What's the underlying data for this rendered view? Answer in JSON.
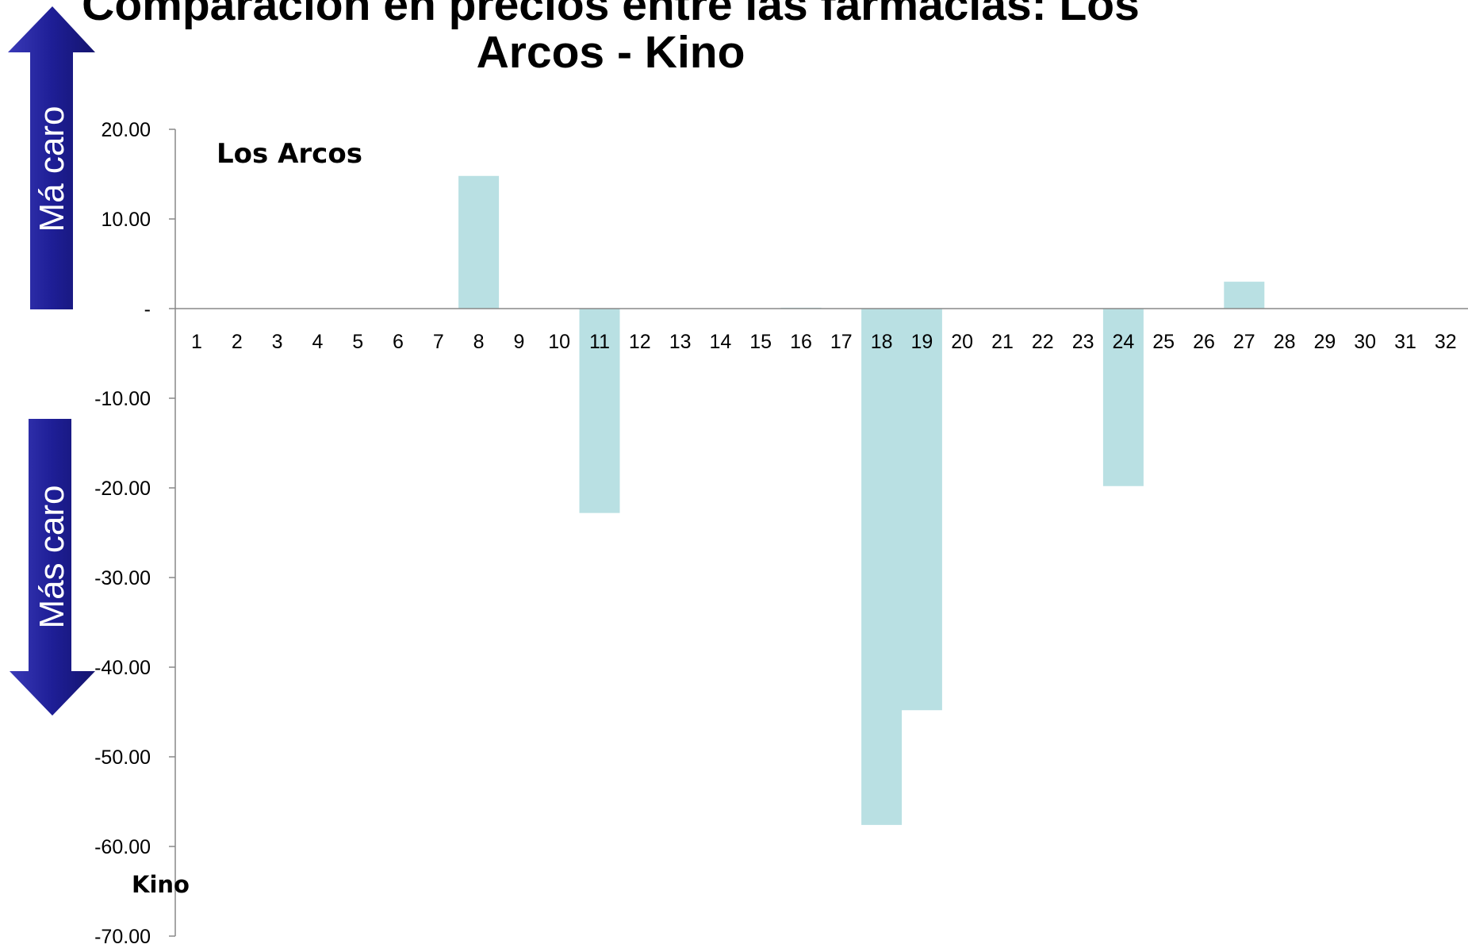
{
  "title_line1": "Comparación en precios entre las farmacias: Los",
  "title_line2": "Arcos - Kino",
  "arrow_up_label": "Má caro",
  "arrow_down_label": "Más caro",
  "annotation_top": "Los Arcos",
  "annotation_bottom": "Kino",
  "colors": {
    "bar": "#b9e0e3",
    "arrow": "#21219c",
    "axis": "#888888"
  },
  "chart_data": {
    "type": "bar",
    "title": "Comparación en precios entre las farmacias: Los Arcos - Kino",
    "categories": [
      "1",
      "2",
      "3",
      "4",
      "5",
      "6",
      "7",
      "8",
      "9",
      "10",
      "11",
      "12",
      "13",
      "14",
      "15",
      "16",
      "17",
      "18",
      "19",
      "20",
      "21",
      "22",
      "23",
      "24",
      "25",
      "26",
      "27",
      "28",
      "29",
      "30",
      "31",
      "32"
    ],
    "values": [
      0,
      0,
      0,
      0,
      0,
      0,
      0,
      14.8,
      0,
      0,
      -22.8,
      0,
      0,
      0,
      0,
      0.1,
      0,
      -57.6,
      -44.8,
      0,
      0,
      0,
      0,
      -19.8,
      0,
      0,
      3.0,
      0,
      0,
      0,
      0,
      0
    ],
    "yticks": [
      "20.00",
      "10.00",
      "-",
      "-10.00",
      "-20.00",
      "-30.00",
      "-40.00",
      "-50.00",
      "-60.00",
      "-70.00"
    ],
    "ylim": [
      -70,
      20
    ],
    "grid": false,
    "legend": "none"
  }
}
